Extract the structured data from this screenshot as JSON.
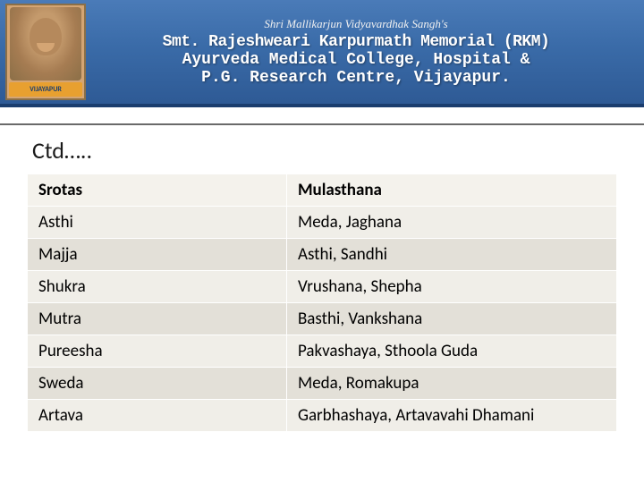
{
  "banner": {
    "topline": "Shri Mallikarjun Vidyavardhak Sangh's",
    "line2": "Smt. Rajeshweari Karpurmath Memorial (RKM)",
    "line3": "Ayurveda Medical College, Hospital &",
    "line4": "P.G. Research Centre, Vijayapur.",
    "portrait_label": "VIJAYAPUR"
  },
  "slide": {
    "title": "Ctd….."
  },
  "table": {
    "headers": [
      "Srotas",
      "Mulasthana"
    ],
    "rows": [
      [
        "Asthi",
        "Meda, Jaghana"
      ],
      [
        "Majja",
        "Asthi, Sandhi"
      ],
      [
        "Shukra",
        "Vrushana, Shepha"
      ],
      [
        "Mutra",
        "Basthi, Vankshana"
      ],
      [
        "Pureesha",
        "Pakvashaya, Sthoola Guda"
      ],
      [
        "Sweda",
        "Meda, Romakupa"
      ],
      [
        "Artava",
        "Garbhashaya, Artavavahi Dhamani"
      ]
    ]
  }
}
